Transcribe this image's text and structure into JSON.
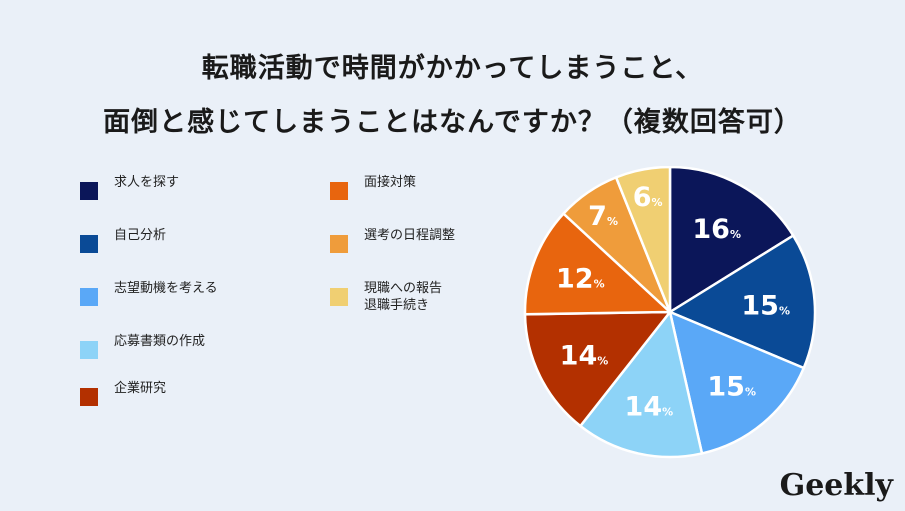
{
  "chart_data": {
    "type": "pie",
    "title": "転職活動で時間がかかってしまうこと、",
    "subtitle": "面倒と感じてしまうことはなんですか？（複数回答可）",
    "unit": "%",
    "slices": [
      {
        "label": "求人を探す",
        "value": 16,
        "color": "#0b1659"
      },
      {
        "label": "自己分析",
        "value": 15,
        "color": "#0a4a96"
      },
      {
        "label": "志望動機を考える",
        "value": 15,
        "color": "#5aa8f7"
      },
      {
        "label": "応募書類の作成",
        "value": 14,
        "color": "#8dd3f7"
      },
      {
        "label": "企業研究",
        "value": 14,
        "color": "#b33000"
      },
      {
        "label": "面接対策",
        "value": 12,
        "color": "#e8650e"
      },
      {
        "label": "選考の日程調整",
        "value": 7,
        "color": "#ef9c3b"
      },
      {
        "label": "現職への報告\n退職手続き",
        "value": 6,
        "color": "#f0cf72"
      }
    ]
  },
  "logo": "Geekly"
}
